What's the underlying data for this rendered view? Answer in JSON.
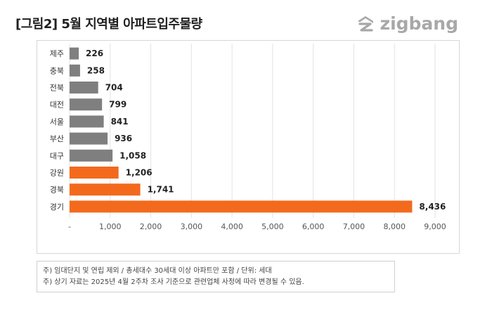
{
  "header": {
    "title": "[그림2] 5월 지역별 아파트입주물량",
    "logo_text": "zigbang"
  },
  "chart_data": {
    "type": "bar",
    "orientation": "horizontal",
    "categories": [
      "제주",
      "충북",
      "전북",
      "대전",
      "서울",
      "부산",
      "대구",
      "강원",
      "경북",
      "경기"
    ],
    "values": [
      226,
      258,
      704,
      799,
      841,
      936,
      1058,
      1206,
      1741,
      8436
    ],
    "value_labels": [
      "226",
      "258",
      "704",
      "799",
      "841",
      "936",
      "1,058",
      "1,206",
      "1,741",
      "8,436"
    ],
    "highlight": [
      false,
      false,
      false,
      false,
      false,
      false,
      false,
      true,
      true,
      true
    ],
    "colors": {
      "default": "#7f7f7f",
      "highlight": "#f36a1d"
    },
    "xlim": [
      0,
      9000
    ],
    "x_ticks": [
      0,
      1000,
      2000,
      3000,
      4000,
      5000,
      6000,
      7000,
      8000,
      9000
    ],
    "x_tick_labels": [
      "-",
      "1,000",
      "2,000",
      "3,000",
      "4,000",
      "5,000",
      "6,000",
      "7,000",
      "8,000",
      "9,000"
    ],
    "grid": true
  },
  "notes": [
    "주) 임대단지 및 연립 제외 / 총세대수 30세대 이상 아파트만 포함 / 단위: 세대",
    "주) 상기 자료는 2025년 4월 2주차 조사 기준으로 관련업체 사정에 따라 변경될 수 있음."
  ]
}
